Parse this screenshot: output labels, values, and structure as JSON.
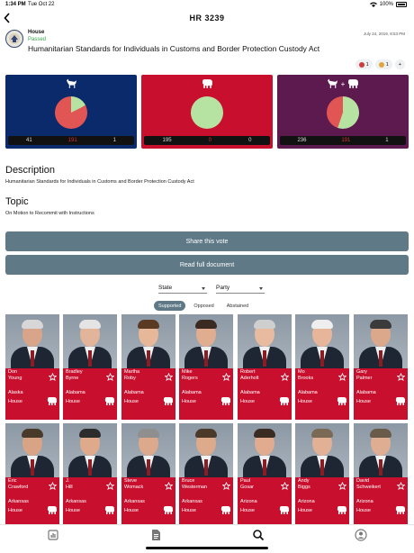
{
  "status_bar": {
    "time": "1:34 PM",
    "date": "Tue Oct 22",
    "battery": "100%"
  },
  "nav": {
    "title": "HR 3239",
    "back_icon": "chevron-left-icon"
  },
  "bill": {
    "chamber": "House",
    "status": "Passed",
    "title": "Humanitarian Standards for Individuals in Customs and Border Protection Custody Act",
    "date": "July 24, 2019, 8:53 PM"
  },
  "reactions": [
    {
      "icon": "thumbs-reaction-icon",
      "count": "1",
      "color": "#d23a3a"
    },
    {
      "icon": "face-reaction-icon",
      "count": "1",
      "color": "#e0a63a"
    },
    {
      "icon": "plus-icon",
      "count": "+",
      "color": ""
    }
  ],
  "tallies": [
    {
      "party": "Democrats",
      "bg": "#0b2a6b",
      "yes": "41",
      "no": "191",
      "abstain": "1",
      "yes_share": 0.176,
      "icons": [
        "donkey-icon"
      ]
    },
    {
      "party": "Republicans",
      "bg": "#c8102e",
      "yes": "195",
      "no": "0",
      "abstain": "0",
      "yes_share": 1.0,
      "icons": [
        "elephant-icon"
      ]
    },
    {
      "party": "All",
      "bg": "#5c1a4e",
      "yes": "236",
      "no": "191",
      "abstain": "1",
      "yes_share": 0.553,
      "icons": [
        "donkey-icon",
        "plus-icon",
        "elephant-icon"
      ]
    }
  ],
  "pie_colors": {
    "yes": "#b6e3a1",
    "no": "#e25555"
  },
  "description": {
    "heading": "Description",
    "text": "Humanitarian Standards for Individuals in Customs and Border Protection Custody Act"
  },
  "topic": {
    "heading": "Topic",
    "text": "On Motion to Recommit with Instructions"
  },
  "buttons": {
    "share": "Share this vote",
    "read": "Read full document"
  },
  "filters": {
    "state": "State",
    "party": "Party"
  },
  "segments": [
    "Supported",
    "Opposed",
    "Abstained"
  ],
  "members": [
    {
      "first": "Don",
      "last": "Young",
      "state": "Alaska",
      "chamber": "House",
      "skin": "#d8a58a",
      "hair": "#d7d7d7"
    },
    {
      "first": "Bradley",
      "last": "Byrne",
      "state": "Alabama",
      "chamber": "House",
      "skin": "#e2b49a",
      "hair": "#e4e4e4"
    },
    {
      "first": "Martha",
      "last": "Roby",
      "state": "Alabama",
      "chamber": "House",
      "skin": "#e6b899",
      "hair": "#5a3a22"
    },
    {
      "first": "Mike",
      "last": "Rogers",
      "state": "Alabama",
      "chamber": "House",
      "skin": "#e0ad90",
      "hair": "#3a2a22"
    },
    {
      "first": "Robert",
      "last": "Aderholt",
      "state": "Alabama",
      "chamber": "House",
      "skin": "#e8bba0",
      "hair": "#cfcfcf"
    },
    {
      "first": "Mo",
      "last": "Brooks",
      "state": "Alabama",
      "chamber": "House",
      "skin": "#e6b59a",
      "hair": "#eeeeee"
    },
    {
      "first": "Gary",
      "last": "Palmer",
      "state": "Alabama",
      "chamber": "House",
      "skin": "#dba88c",
      "hair": "#3b3b3b"
    },
    {
      "first": "Eric",
      "last": "Crawford",
      "state": "Arkansas",
      "chamber": "House",
      "skin": "#d9a486",
      "hair": "#4a3a2a"
    },
    {
      "first": "J.",
      "last": "Hill",
      "state": "Arkansas",
      "chamber": "House",
      "skin": "#dfaa8c",
      "hair": "#2c2c2c"
    },
    {
      "first": "Steve",
      "last": "Womack",
      "state": "Arkansas",
      "chamber": "House",
      "skin": "#dca98d",
      "hair": "#8f8f8f"
    },
    {
      "first": "Bruce",
      "last": "Westerman",
      "state": "Arkansas",
      "chamber": "House",
      "skin": "#ddaa8b",
      "hair": "#4b3a2a"
    },
    {
      "first": "Paul",
      "last": "Gosar",
      "state": "Arizona",
      "chamber": "House",
      "skin": "#e0ab8e",
      "hair": "#3a2c22"
    },
    {
      "first": "Andy",
      "last": "Biggs",
      "state": "Arizona",
      "chamber": "House",
      "skin": "#e2b095",
      "hair": "#7a6a55"
    },
    {
      "first": "David",
      "last": "Schweikert",
      "state": "Arizona",
      "chamber": "House",
      "skin": "#dfae92",
      "hair": "#6a5a4a"
    }
  ],
  "tabs": [
    {
      "name": "tab-stats",
      "icon": "bar-chart-icon"
    },
    {
      "name": "tab-documents",
      "icon": "document-icon"
    },
    {
      "name": "tab-search",
      "icon": "search-icon"
    },
    {
      "name": "tab-profile",
      "icon": "user-icon"
    }
  ]
}
